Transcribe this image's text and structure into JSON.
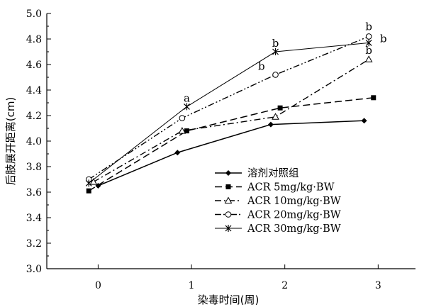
{
  "chart_data": {
    "type": "line",
    "title": "",
    "xlabel": "染毒时间(周)",
    "ylabel": "后肢展开距离(cm)",
    "x_ticks": [
      "0",
      "1",
      "2",
      "3"
    ],
    "y_ticks": [
      "3.0",
      "3.2",
      "3.4",
      "3.6",
      "3.8",
      "4.0",
      "4.2",
      "4.4",
      "4.6",
      "4.8",
      "5.0"
    ],
    "ylim": [
      3.0,
      5.0
    ],
    "xlim": [
      -0.55,
      3.4
    ],
    "grid": false,
    "legend_position": "lower-right",
    "series": [
      {
        "name": "溶剂对照组",
        "marker": "diamond-filled",
        "dash": "solid",
        "x": [
          0,
          0.85,
          1.85,
          2.85
        ],
        "y": [
          3.65,
          3.91,
          4.13,
          4.16
        ]
      },
      {
        "name": "ACR 5mg/kg·BW",
        "marker": "square-filled",
        "dash": "longdash",
        "x": [
          -0.1,
          0.95,
          1.95,
          2.95
        ],
        "y": [
          3.61,
          4.08,
          4.26,
          4.34
        ]
      },
      {
        "name": "ACR 10mg/kg·BW",
        "marker": "triangle-open",
        "dash": "dashdot",
        "x": [
          -0.05,
          0.9,
          1.9,
          2.9
        ],
        "y": [
          3.68,
          4.08,
          4.19,
          4.64
        ]
      },
      {
        "name": "ACR 20mg/kg·BW",
        "marker": "circle-open",
        "dash": "dashdotdot",
        "x": [
          -0.1,
          0.9,
          1.9,
          2.9
        ],
        "y": [
          3.7,
          4.18,
          4.52,
          4.82
        ]
      },
      {
        "name": "ACR 30mg/kg·BW",
        "marker": "star",
        "dash": "solid-thin",
        "x": [
          -0.1,
          0.95,
          1.9,
          2.9
        ],
        "y": [
          3.67,
          4.27,
          4.7,
          4.77
        ]
      }
    ],
    "annotations": [
      {
        "text": "a",
        "x": 0.95,
        "y": 4.27
      },
      {
        "text": "b",
        "x": 1.9,
        "y": 4.7
      },
      {
        "text": "b",
        "x": 1.75,
        "y": 4.52
      },
      {
        "text": "b",
        "x": 2.9,
        "y": 4.82
      },
      {
        "text": "b",
        "x": 2.9,
        "y": 4.64
      },
      {
        "text": "b",
        "x": 2.95,
        "y": 4.77
      }
    ]
  }
}
